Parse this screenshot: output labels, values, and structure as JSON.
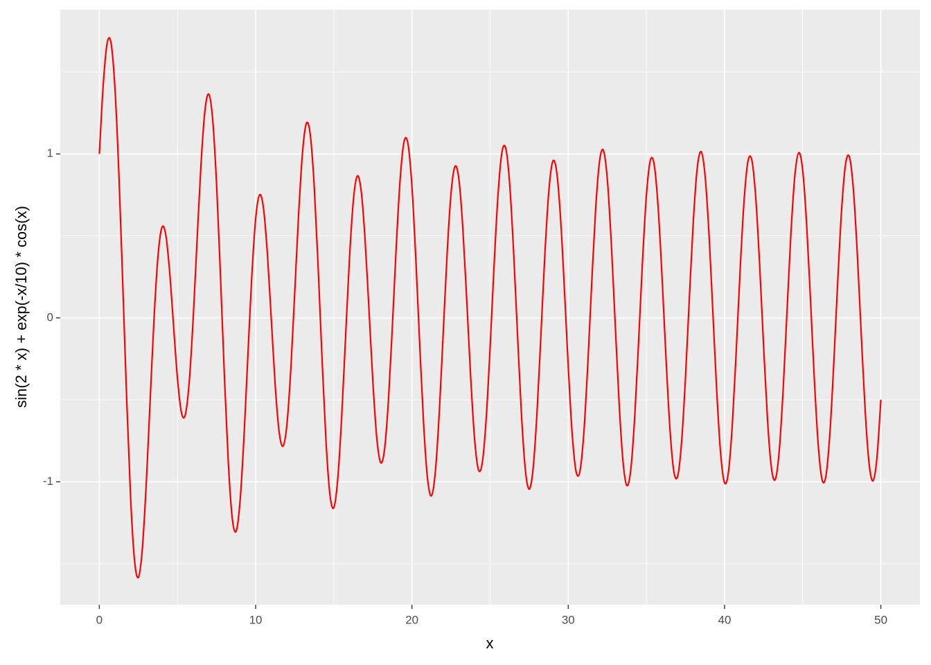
{
  "chart_data": {
    "type": "line",
    "x_label": "x",
    "y_label": "sin(2 * x) + exp(-x/10) * cos(x)",
    "xlim": [
      -2.5,
      52.5
    ],
    "ylim": [
      -1.75,
      1.88
    ],
    "xticks": [
      0,
      10,
      20,
      30,
      40,
      50
    ],
    "yticks": [
      -1,
      0,
      1
    ],
    "x_minor_breaks": [
      5,
      15,
      25,
      35,
      45
    ],
    "y_minor_breaks": [
      -1.5,
      -0.5,
      0.5,
      1.5
    ],
    "grid": true,
    "color": "#ff0000",
    "x": [
      0,
      0.25,
      0.5,
      0.75,
      1,
      1.25,
      1.5,
      1.75,
      2,
      2.25,
      2.5,
      2.75,
      3,
      3.25,
      3.5,
      3.75,
      4,
      4.25,
      4.5,
      4.75,
      5,
      5.25,
      5.5,
      5.75,
      6,
      6.25,
      6.5,
      6.75,
      7,
      7.25,
      7.5,
      7.75,
      8,
      8.25,
      8.5,
      8.75,
      9,
      9.25,
      9.5,
      9.75,
      10,
      10.25,
      10.5,
      10.75,
      11,
      11.25,
      11.5,
      11.75,
      12,
      12.25,
      12.5,
      12.75,
      13,
      13.25,
      13.5,
      13.75,
      14,
      14.25,
      14.5,
      14.75,
      15,
      15.25,
      15.5,
      15.75,
      16,
      16.25,
      16.5,
      16.75,
      17,
      17.25,
      17.5,
      17.75,
      18,
      18.25,
      18.5,
      18.75,
      19,
      19.25,
      19.5,
      19.75,
      20,
      20.25,
      20.5,
      20.75,
      21,
      21.25,
      21.5,
      21.75,
      22,
      22.25,
      22.5,
      22.75,
      23,
      23.25,
      23.5,
      23.75,
      24,
      24.25,
      24.5,
      24.75,
      25,
      25.25,
      25.5,
      25.75,
      26,
      26.25,
      26.5,
      26.75,
      27,
      27.25,
      27.5,
      27.75,
      28,
      28.25,
      28.5,
      28.75,
      29,
      29.25,
      29.5,
      29.75,
      30,
      30.25,
      30.5,
      30.75,
      31,
      31.25,
      31.5,
      31.75,
      32,
      32.25,
      32.5,
      32.75,
      33,
      33.25,
      33.5,
      33.75,
      34,
      34.25,
      34.5,
      34.75,
      35,
      35.25,
      35.5,
      35.75,
      36,
      36.25,
      36.5,
      36.75,
      37,
      37.25,
      37.5,
      37.75,
      38,
      38.25,
      38.5,
      38.75,
      39,
      39.25,
      39.5,
      39.75,
      40,
      40.25,
      40.5,
      40.75,
      41,
      41.25,
      41.5,
      41.75,
      42,
      42.25,
      42.5,
      42.75,
      43,
      43.25,
      43.5,
      43.75,
      44,
      44.25,
      44.5,
      44.75,
      45,
      45.25,
      45.5,
      45.75,
      46,
      46.25,
      46.5,
      46.75,
      47,
      47.25,
      47.5,
      47.75,
      48,
      48.25,
      48.5,
      48.75,
      49,
      49.25,
      49.5,
      49.75,
      50
    ],
    "values": [
      1.0,
      1.424,
      1.676,
      1.676,
      1.398,
      0.877,
      0.202,
      -0.5,
      -1.098,
      -1.479,
      -1.583,
      -1.408,
      -1.013,
      -0.503,
      -0.003,
      0.374,
      0.551,
      0.507,
      0.278,
      -0.052,
      -0.372,
      -0.577,
      -0.591,
      -0.391,
      -0.01,
      0.469,
      0.93,
      1.259,
      1.365,
      1.21,
      0.814,
      0.254,
      -0.353,
      -0.881,
      -1.219,
      -1.302,
      -1.121,
      -0.733,
      -0.236,
      0.248,
      0.604,
      0.75,
      0.67,
      0.392,
      -0.007,
      -0.41,
      -0.693,
      -0.783,
      -0.651,
      -0.313,
      0.154,
      0.634,
      1.01,
      1.188,
      1.113,
      0.798,
      0.305,
      -0.253,
      -0.751,
      -1.076,
      -1.158,
      -0.986,
      -0.611,
      -0.123,
      0.358,
      0.715,
      0.865,
      0.776,
      0.479,
      0.052,
      -0.39,
      -0.733,
      -0.883,
      -0.799,
      -0.496,
      -0.045,
      0.444,
      0.852,
      1.077,
      1.06,
      0.8,
      0.356,
      -0.169,
      -0.653,
      -0.984,
      -1.085,
      -0.935,
      -0.574,
      -0.093,
      0.391,
      0.759,
      0.923,
      0.848,
      0.555,
      0.118,
      -0.349,
      -0.73,
      -0.925,
      -0.884,
      -0.615,
      -0.181,
      0.311,
      0.742,
      1.005,
      1.035,
      0.82,
      0.41,
      -0.096,
      -0.578,
      -0.922,
      -1.045,
      -0.921,
      -0.58,
      -0.108,
      0.38,
      0.764,
      0.952,
      0.898,
      0.619,
      0.184,
      -0.297,
      -0.705,
      -0.937,
      -0.935,
      -0.698,
      -0.283,
      0.21,
      0.659,
      0.954,
      1.022,
      0.845,
      0.463,
      -0.027,
      -0.512,
      -0.873,
      -1.023,
      -0.926,
      -0.608,
      -0.147,
      0.345,
      0.747,
      0.96,
      0.934,
      0.675,
      0.25,
      -0.238,
      -0.668,
      -0.933,
      -0.966,
      -0.759,
      -0.365,
      0.125,
      0.588,
      0.911,
      1.014,
      0.872,
      0.52,
      0.04,
      -0.448,
      -0.828,
      -1.006,
      -0.94,
      -0.645,
      -0.197,
      0.297,
      0.716,
      0.956,
      0.96,
      0.727,
      0.314,
      -0.175,
      -0.623,
      -0.916,
      -0.985,
      -0.81,
      -0.435,
      0.047,
      0.521,
      0.87,
      1.008,
      0.9,
      0.573,
      0.107,
      -0.385,
      -0.784,
      -0.991,
      -0.956,
      -0.689,
      -0.255,
      0.241,
      0.675,
      0.943,
      0.978,
      0.774,
      0.378,
      -0.11,
      -0.571,
      -0.891,
      -0.994,
      -0.853,
      -0.5
    ]
  }
}
